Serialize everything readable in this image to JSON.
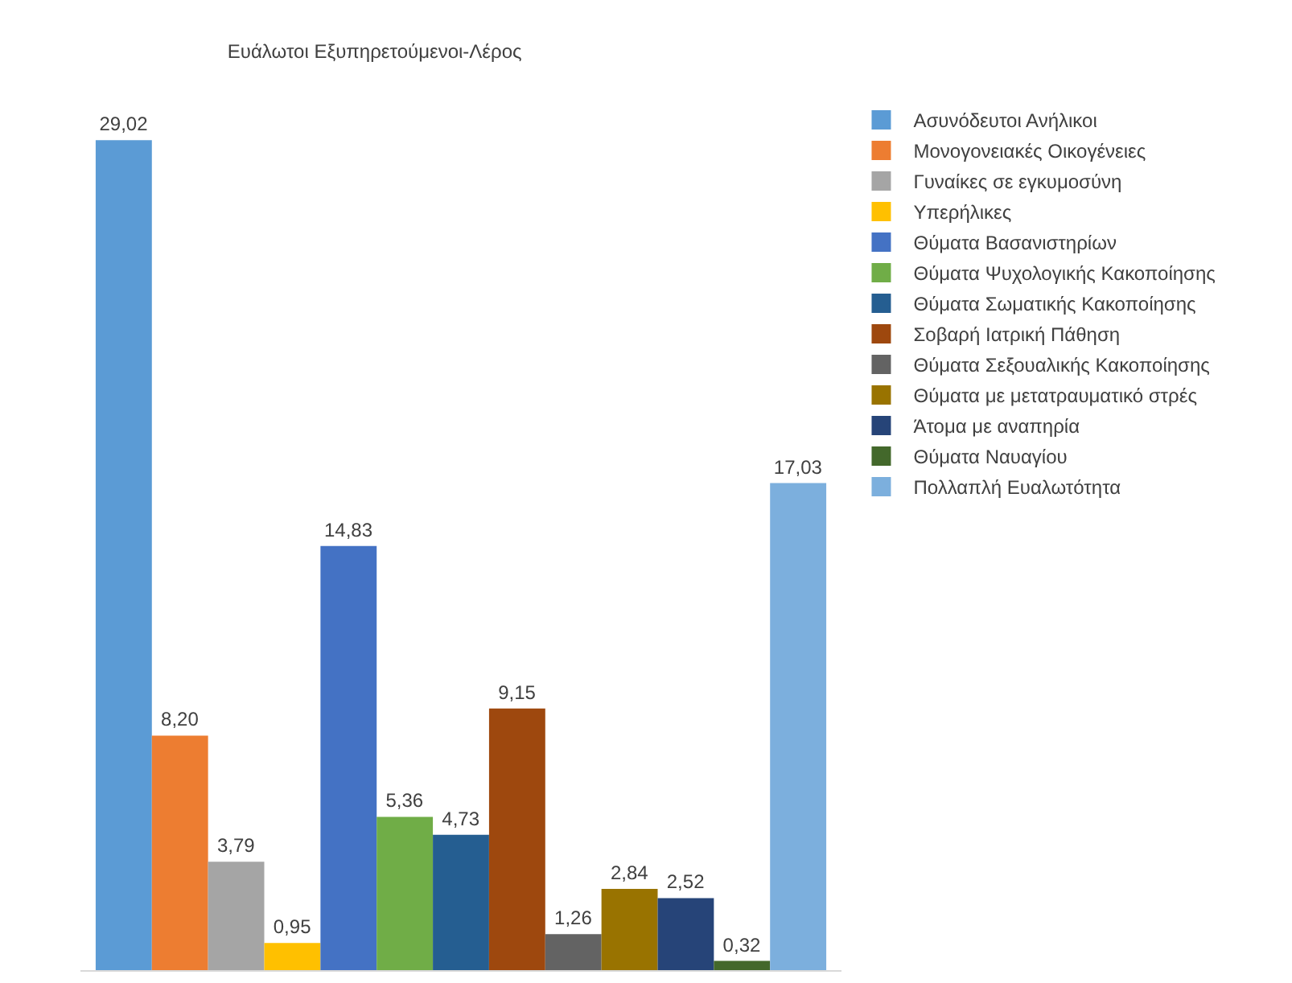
{
  "chart_data": {
    "type": "bar",
    "title": "Ευάλωτοι Εξυπηρετούμενοι-Λέρος",
    "categories": [
      null
    ],
    "legend": "right",
    "tick_labels": false,
    "series": [
      {
        "name": "Ασυνόδευτοι Ανήλικοι",
        "color": "#5b9bd5",
        "values": [
          29.02
        ],
        "value_labels": [
          "29,02"
        ]
      },
      {
        "name": "Μονογονειακές Οικογένειες",
        "color": "#ed7d31",
        "values": [
          8.2
        ],
        "value_labels": [
          "8,20"
        ]
      },
      {
        "name": "Γυναίκες σε εγκυμοσύνη",
        "color": "#a5a5a5",
        "values": [
          3.79
        ],
        "value_labels": [
          "3,79"
        ]
      },
      {
        "name": "Υπερήλικες",
        "color": "#ffc000",
        "values": [
          0.95
        ],
        "value_labels": [
          "0,95"
        ]
      },
      {
        "name": "Θύματα Βασανιστηρίων",
        "color": "#4472c4",
        "values": [
          14.83
        ],
        "value_labels": [
          "14,83"
        ]
      },
      {
        "name": "Θύματα Ψυχολογικής Κακοποίησης",
        "color": "#70ad47",
        "values": [
          5.36
        ],
        "value_labels": [
          "5,36"
        ]
      },
      {
        "name": "Θύματα Σωματικής Κακοποίησης",
        "color": "#255e91",
        "values": [
          4.73
        ],
        "value_labels": [
          "4,73"
        ]
      },
      {
        "name": "Σοβαρή Ιατρική Πάθηση",
        "color": "#9e480e",
        "values": [
          9.15
        ],
        "value_labels": [
          "9,15"
        ]
      },
      {
        "name": "Θύματα Σεξουαλικής Κακοποίησης",
        "color": "#636363",
        "values": [
          1.26
        ],
        "value_labels": [
          "1,26"
        ]
      },
      {
        "name": "Θύματα με μετατραυματικό στρές",
        "color": "#997300",
        "values": [
          2.84
        ],
        "value_labels": [
          "2,84"
        ]
      },
      {
        "name": "Άτομα με αναπηρία",
        "color": "#264478",
        "values": [
          2.52
        ],
        "value_labels": [
          "2,52"
        ]
      },
      {
        "name": "Θύματα Ναυαγίου",
        "color": "#43682b",
        "values": [
          0.32
        ],
        "value_labels": [
          "0,32"
        ]
      },
      {
        "name": "Πολλαπλή Ευαλωτότητα",
        "color": "#7cafdd",
        "values": [
          17.03
        ],
        "value_labels": [
          "17,03"
        ]
      }
    ]
  }
}
